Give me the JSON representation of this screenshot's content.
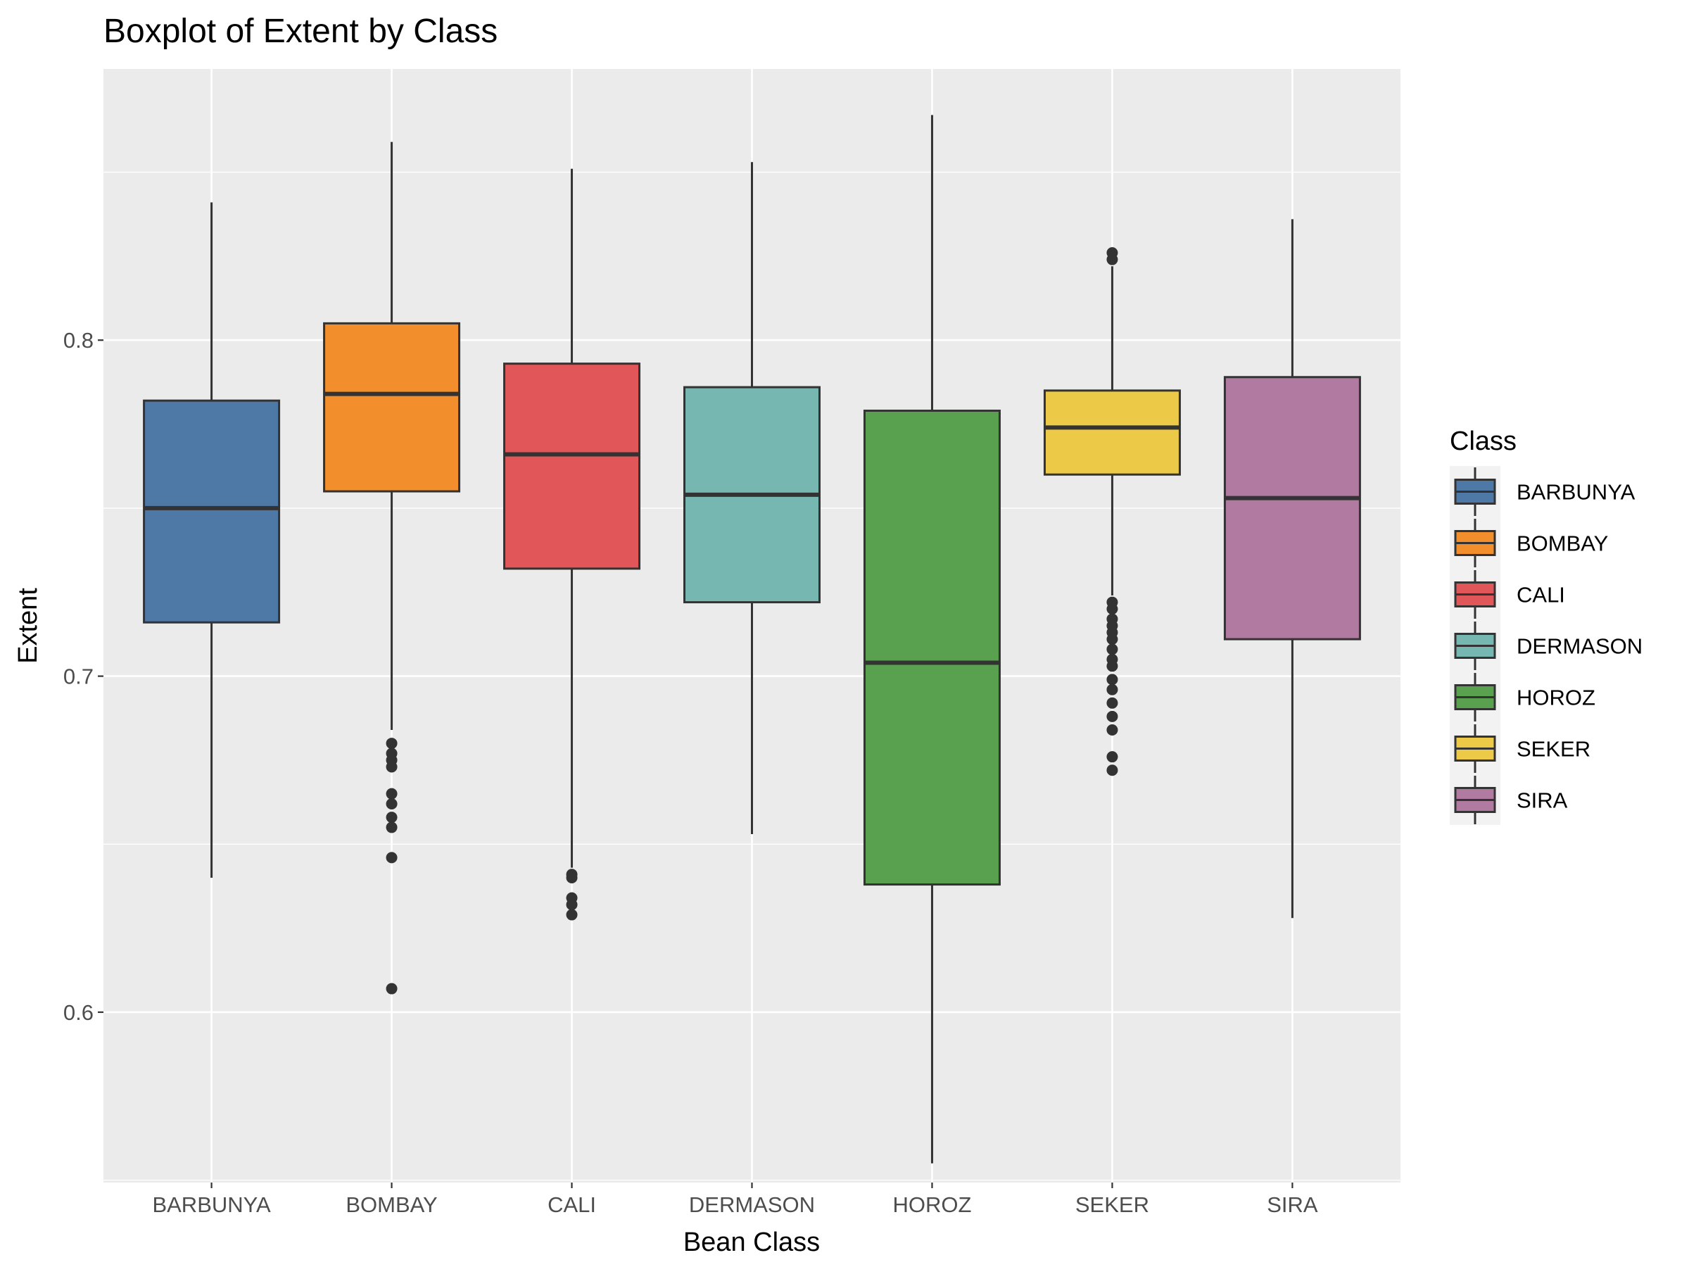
{
  "chart_data": {
    "type": "boxplot",
    "title": "Boxplot of Extent by Class",
    "xlabel": "Bean Class",
    "ylabel": "Extent",
    "ylim": [
      0.5493,
      0.8807
    ],
    "yticks": [
      0.6,
      0.7,
      0.8
    ],
    "ytick_labels": [
      "0.6",
      "0.7",
      "0.8"
    ],
    "grid": true,
    "legend": {
      "title": "Class",
      "placement": "right"
    },
    "categories": [
      "BARBUNYA",
      "BOMBAY",
      "CALI",
      "DERMASON",
      "HOROZ",
      "SEKER",
      "SIRA"
    ],
    "colors": [
      "#4E79A7",
      "#F28E2B",
      "#E15759",
      "#76B7B2",
      "#59A14F",
      "#EDC948",
      "#B07AA1"
    ],
    "boxes": [
      {
        "name": "BARBUNYA",
        "min": 0.64,
        "q1": 0.716,
        "median": 0.75,
        "q3": 0.782,
        "max": 0.841,
        "outliers": []
      },
      {
        "name": "BOMBAY",
        "min": 0.684,
        "q1": 0.755,
        "median": 0.784,
        "q3": 0.805,
        "max": 0.859,
        "outliers": [
          0.68,
          0.677,
          0.675,
          0.673,
          0.665,
          0.662,
          0.658,
          0.655,
          0.646,
          0.607
        ]
      },
      {
        "name": "CALI",
        "min": 0.643,
        "q1": 0.732,
        "median": 0.766,
        "q3": 0.793,
        "max": 0.851,
        "outliers": [
          0.641,
          0.64,
          0.634,
          0.632,
          0.629
        ]
      },
      {
        "name": "DERMASON",
        "min": 0.653,
        "q1": 0.722,
        "median": 0.754,
        "q3": 0.786,
        "max": 0.853,
        "outliers": []
      },
      {
        "name": "HOROZ",
        "min": 0.555,
        "q1": 0.638,
        "median": 0.704,
        "q3": 0.779,
        "max": 0.867,
        "outliers": []
      },
      {
        "name": "SEKER",
        "min": 0.724,
        "q1": 0.76,
        "median": 0.774,
        "q3": 0.785,
        "max": 0.822,
        "outliers": [
          0.826,
          0.824,
          0.722,
          0.72,
          0.717,
          0.715,
          0.713,
          0.711,
          0.708,
          0.705,
          0.703,
          0.699,
          0.696,
          0.692,
          0.688,
          0.684,
          0.676,
          0.672
        ]
      },
      {
        "name": "SIRA",
        "min": 0.628,
        "q1": 0.711,
        "median": 0.753,
        "q3": 0.789,
        "max": 0.836,
        "outliers": []
      }
    ]
  }
}
